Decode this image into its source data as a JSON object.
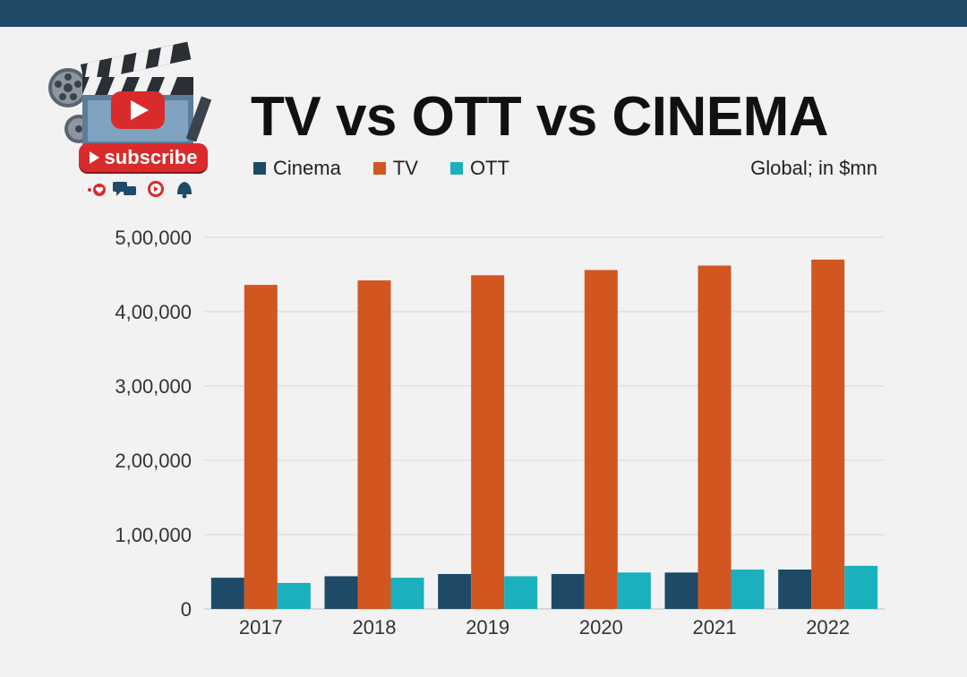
{
  "header": {
    "title": "TV vs OTT vs CINEMA",
    "subscribe_label": "subscribe",
    "unit_note": "Global; in $mn"
  },
  "icons": [
    "film-reel-icon",
    "clapperboard-icon",
    "play-button-icon",
    "heart-icon",
    "chat-icon",
    "notification-bell-icon"
  ],
  "colors": {
    "topbar": "#1e4a68",
    "cinema": "#1e4a68",
    "tv": "#d2561f",
    "ott": "#1ab0bd",
    "subscribe": "#d92b2b"
  },
  "legend": [
    {
      "label": "Cinema",
      "color": "#1e4a68"
    },
    {
      "label": "TV",
      "color": "#d2561f"
    },
    {
      "label": "OTT",
      "color": "#1ab0bd"
    }
  ],
  "chart_data": {
    "type": "bar",
    "title": "TV vs OTT vs CINEMA",
    "subtitle": "Global; in $mn",
    "xlabel": "",
    "ylabel": "",
    "categories": [
      "2017",
      "2018",
      "2019",
      "2020",
      "2021",
      "2022"
    ],
    "series": [
      {
        "name": "Cinema",
        "color": "#1e4a68",
        "values": [
          42000,
          44000,
          47000,
          47000,
          49000,
          53000
        ]
      },
      {
        "name": "TV",
        "color": "#d2561f",
        "values": [
          436000,
          442000,
          449000,
          456000,
          462000,
          470000
        ]
      },
      {
        "name": "OTT",
        "color": "#1ab0bd",
        "values": [
          35000,
          42000,
          44000,
          49000,
          53000,
          58000
        ]
      }
    ],
    "ylim": [
      0,
      500000
    ],
    "yticks": [
      0,
      100000,
      200000,
      300000,
      400000,
      500000
    ],
    "ytick_labels": [
      "0",
      "1,00,000",
      "2,00,000",
      "3,00,000",
      "4,00,000",
      "5,00,000"
    ],
    "grid": true,
    "legend_position": "top-left"
  }
}
